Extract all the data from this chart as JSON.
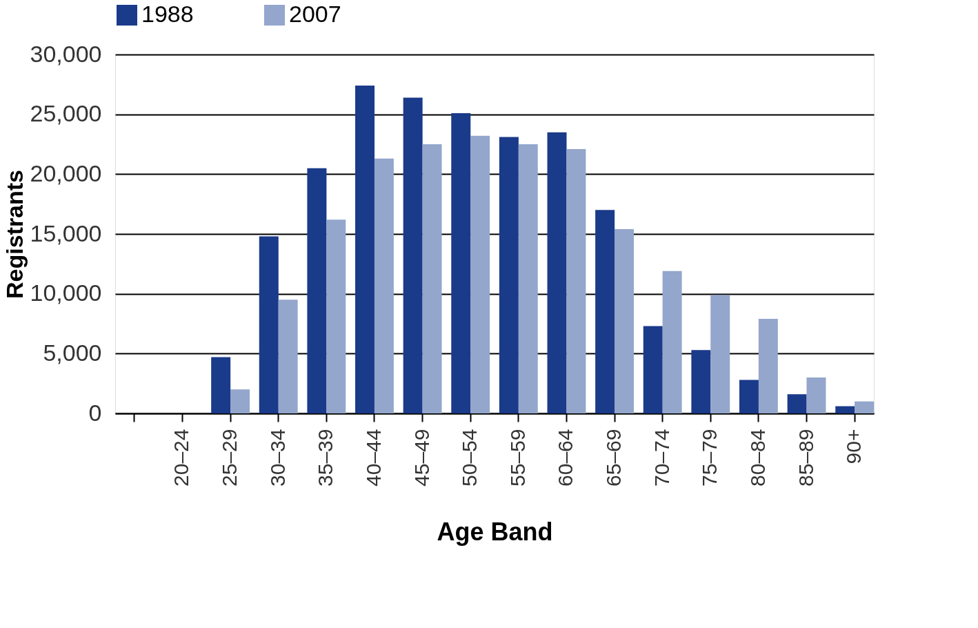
{
  "chart_data": {
    "type": "bar",
    "xlabel": "Age Band",
    "ylabel": "Registrants",
    "categories": [
      null,
      "20–24",
      "25–29",
      "30–34",
      "35–39",
      "40–44",
      "45–49",
      "50–54",
      "55–59",
      "60–64",
      "65–69",
      "70–74",
      "75–79",
      "80–84",
      "85–89",
      "90+"
    ],
    "series": [
      {
        "name": "1988",
        "color": "#1a3a8a",
        "values": [
          null,
          0,
          4700,
          14800,
          20500,
          27400,
          26400,
          25100,
          23100,
          23500,
          17000,
          7300,
          5300,
          2800,
          1600,
          600
        ]
      },
      {
        "name": "2007",
        "color": "#94a6cc",
        "values": [
          null,
          0,
          2000,
          9500,
          16200,
          21300,
          22500,
          23200,
          22500,
          22100,
          15400,
          11900,
          9900,
          7900,
          3000,
          1000
        ]
      }
    ],
    "ylim": [
      0,
      30000
    ],
    "yticks": [
      0,
      {
        "value": 5000,
        "label": "5,000"
      },
      {
        "value": 10000,
        "label": "10,000"
      },
      {
        "value": 15000,
        "label": "15,000"
      },
      {
        "value": 20000,
        "label": "20,000"
      },
      {
        "value": 25000,
        "label": "25,000"
      },
      {
        "value": 30000,
        "label": "30,000"
      }
    ],
    "grid": "y",
    "legend": "top left"
  }
}
